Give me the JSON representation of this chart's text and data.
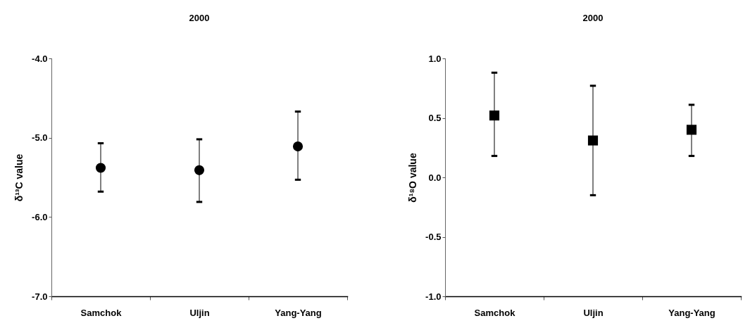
{
  "chart_data": [
    {
      "type": "scatter",
      "title": "2000",
      "ylabel": "δ¹³C value",
      "categories": [
        "Samchok",
        "Uljin",
        "Yang-Yang"
      ],
      "values": [
        -5.38,
        -5.41,
        -5.11
      ],
      "errors": [
        [
          -5.68,
          -5.07
        ],
        [
          -5.81,
          -5.02
        ],
        [
          -5.53,
          -4.67
        ]
      ],
      "color": "#000000",
      "marker": "circle",
      "ylim": [
        -7,
        -4
      ],
      "yticks": [
        {
          "value": -7,
          "label": "-7.0"
        },
        {
          "value": -6,
          "label": "-6.0"
        },
        {
          "value": -5,
          "label": "-5.0"
        },
        {
          "value": -4,
          "label": "-4.0"
        }
      ],
      "grid": false
    },
    {
      "type": "scatter",
      "title": "2000",
      "ylabel": "δ¹⁸O value",
      "categories": [
        "Samchok",
        "Uljin",
        "Yang-Yang"
      ],
      "values": [
        0.52,
        0.31,
        0.4
      ],
      "errors": [
        [
          0.18,
          0.88
        ],
        [
          -0.15,
          0.77
        ],
        [
          0.18,
          0.61
        ]
      ],
      "color": "#000000",
      "marker": "square",
      "ylim": [
        -1,
        1
      ],
      "yticks": [
        {
          "value": -1,
          "label": "-1.0"
        },
        {
          "value": -0.5,
          "label": "-0.5"
        },
        {
          "value": 0,
          "label": "0.0"
        },
        {
          "value": 0.5,
          "label": "0.5"
        },
        {
          "value": 1,
          "label": "1.0"
        }
      ],
      "grid": false
    }
  ]
}
